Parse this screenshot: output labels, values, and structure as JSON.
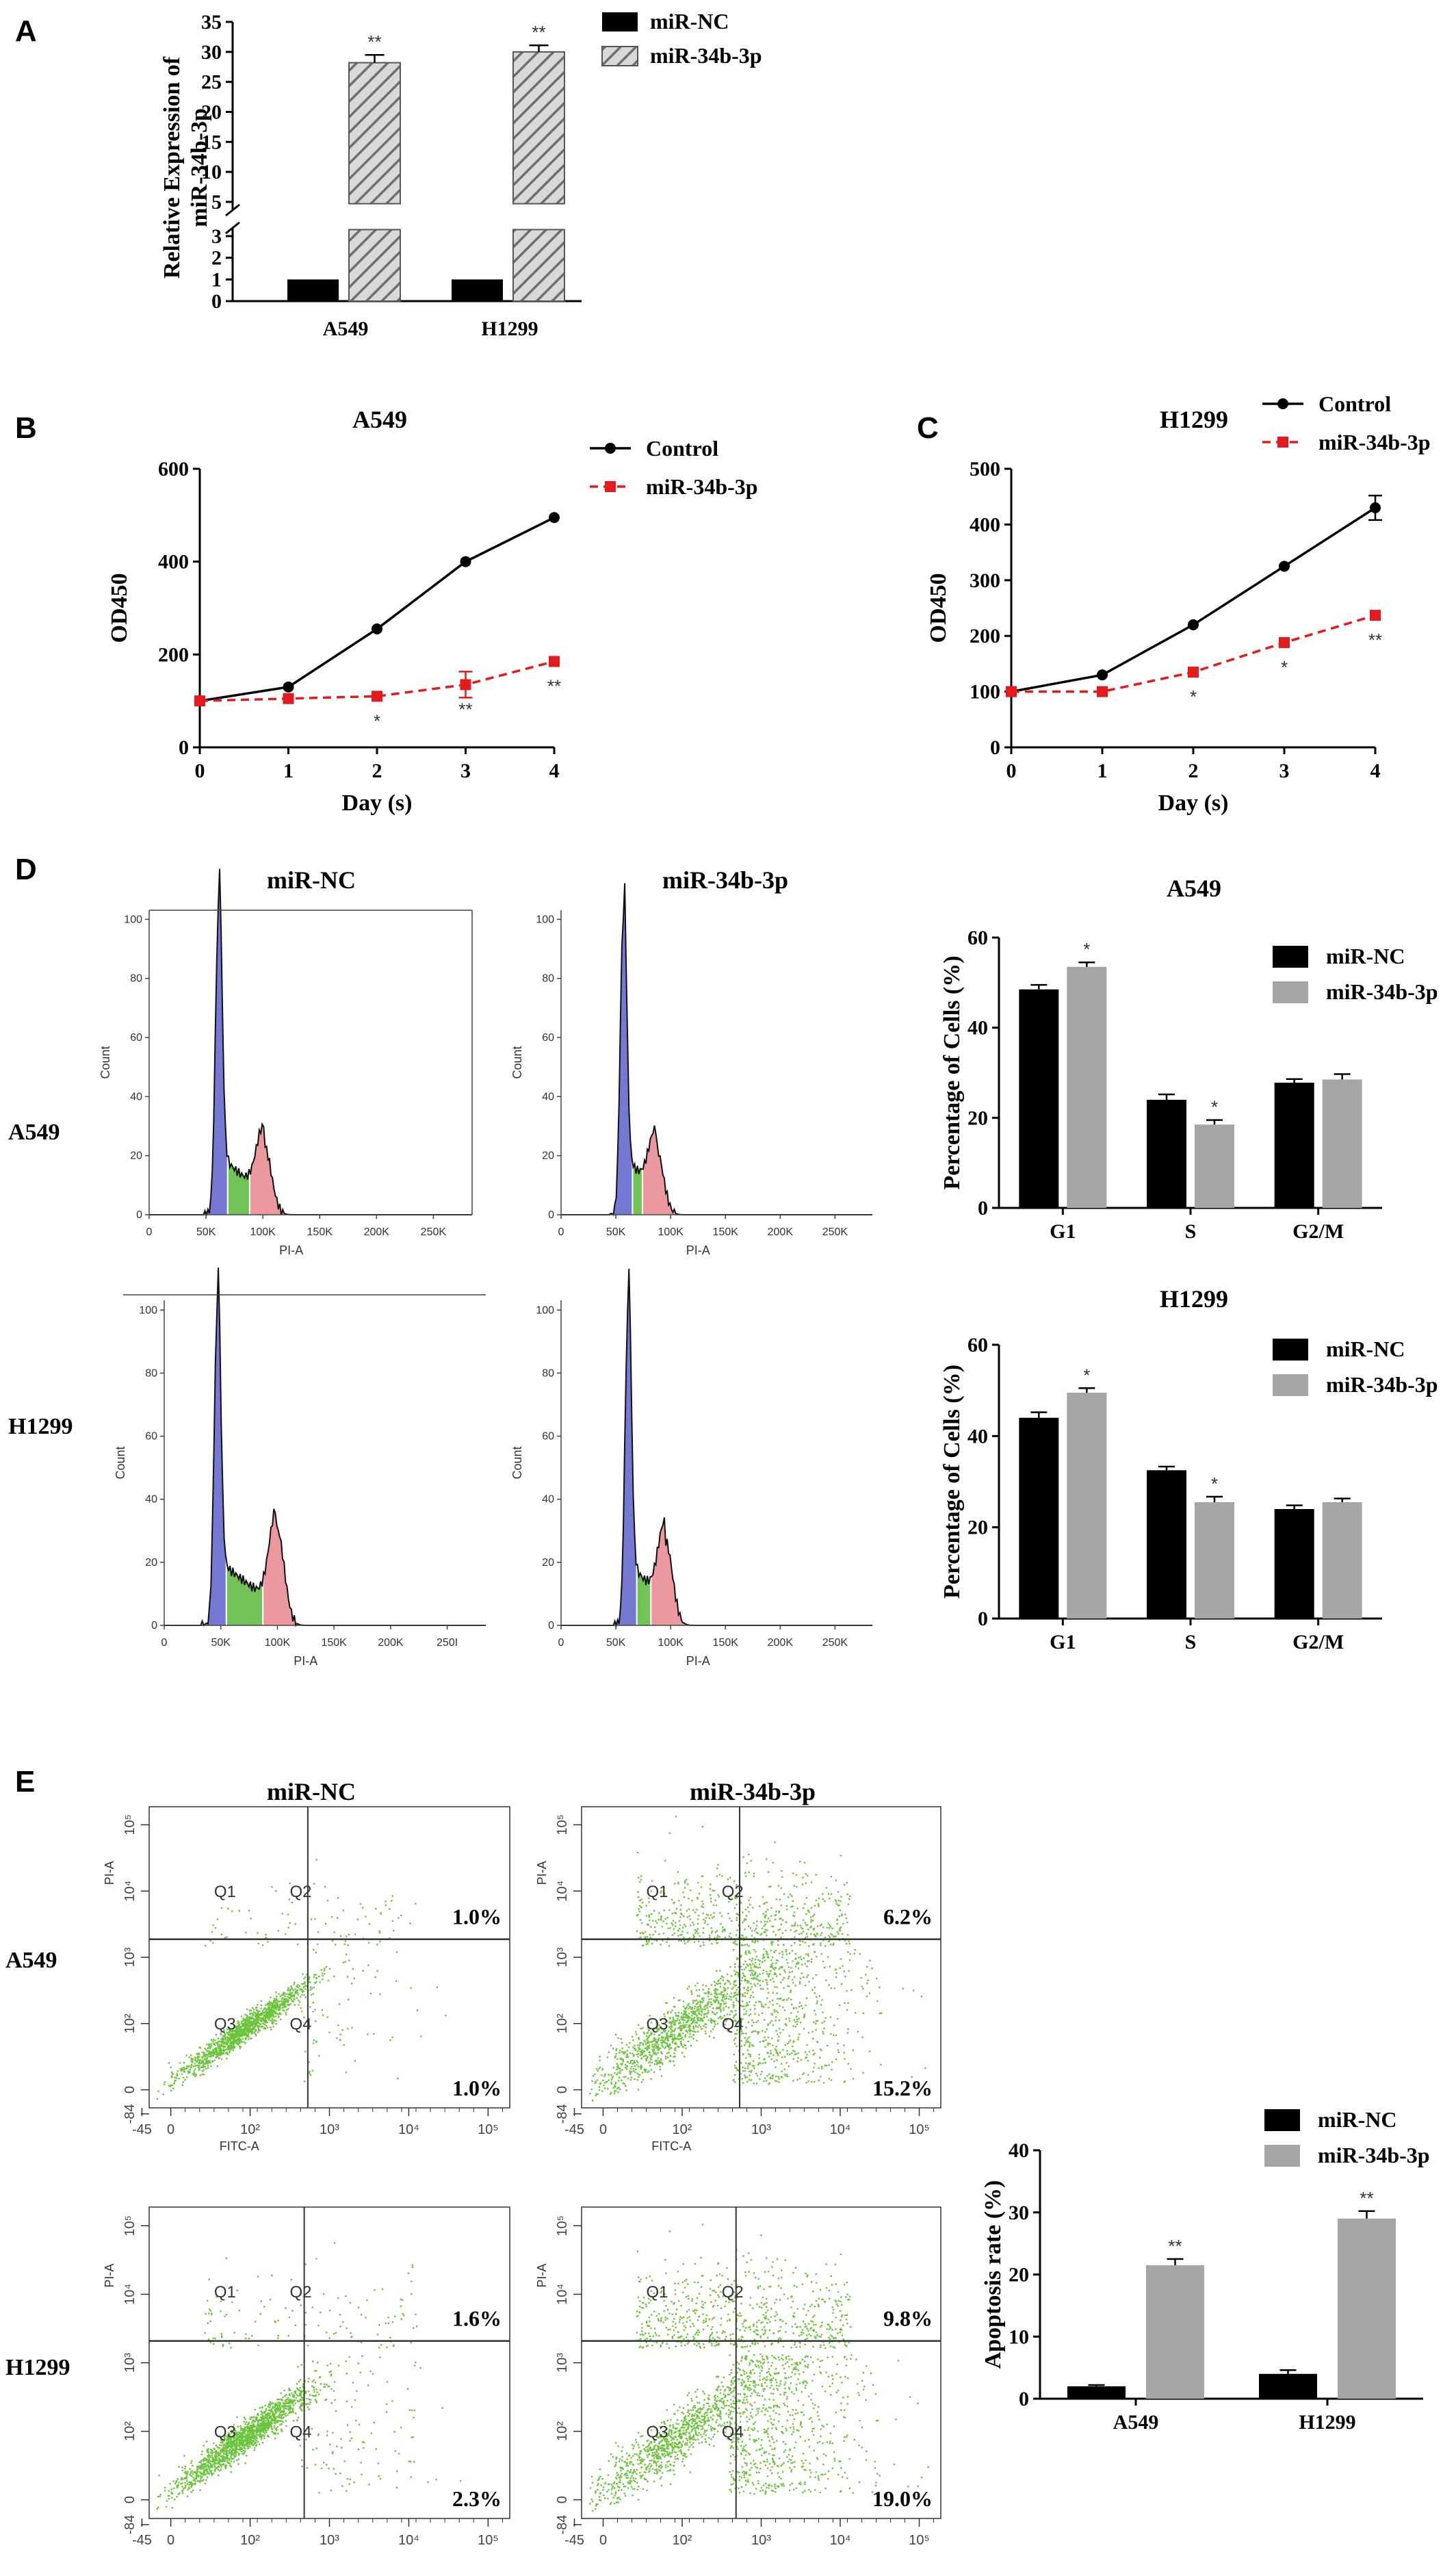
{
  "panel_labels": [
    "A",
    "B",
    "C",
    "D",
    "E"
  ],
  "colors": {
    "black": "#000000",
    "gray": "#a6a6a6",
    "red": "#e41a1c",
    "blue": "#5d62c9",
    "green": "#58b93b",
    "pink": "#e8868e",
    "dot_green": "#6cc43d"
  },
  "chart_data": [
    {
      "id": "A",
      "type": "bar",
      "title": "",
      "xlabel": "",
      "ylabel": "Relative Expression of miR-34b-3p",
      "categories": [
        "A549",
        "H1299"
      ],
      "series": [
        {
          "name": "miR-NC",
          "values": [
            1.0,
            1.0
          ],
          "errors": [
            0.05,
            0.05
          ],
          "style": "solid-black"
        },
        {
          "name": "miR-34b-3p",
          "values": [
            28.2,
            30.0
          ],
          "errors": [
            1.3,
            1.1
          ],
          "style": "hatched-gray"
        }
      ],
      "significance": [
        "**",
        "**"
      ],
      "y_axis": {
        "broken": true,
        "lower_range": [
          0,
          3
        ],
        "upper_range": [
          5,
          35
        ],
        "lower_ticks": [
          "0",
          "1",
          "2",
          "3"
        ],
        "upper_ticks": [
          "5",
          "10",
          "15",
          "20",
          "25",
          "30",
          "35"
        ]
      },
      "legend": "top-right"
    },
    {
      "id": "B",
      "type": "line",
      "title": "A549",
      "xlabel": "Day (s)",
      "ylabel": "OD450",
      "x": [
        0,
        1,
        2,
        3,
        4
      ],
      "ylim": [
        0,
        600
      ],
      "yticks": [
        "0",
        "200",
        "400",
        "600"
      ],
      "xticks": [
        "0",
        "1",
        "2",
        "3",
        "4"
      ],
      "series": [
        {
          "name": "Control",
          "values": [
            100,
            130,
            255,
            400,
            495
          ],
          "errors": [
            0,
            0,
            0,
            0,
            0
          ]
        },
        {
          "name": "miR-34b-3p",
          "values": [
            100,
            105,
            110,
            135,
            185
          ],
          "errors": [
            0,
            0,
            0,
            28,
            0
          ]
        }
      ],
      "significance": [
        "",
        "",
        "*",
        "**",
        "**"
      ],
      "legend": "top-right"
    },
    {
      "id": "C",
      "type": "line",
      "title": "H1299",
      "xlabel": "Day (s)",
      "ylabel": "OD450",
      "x": [
        0,
        1,
        2,
        3,
        4
      ],
      "ylim": [
        0,
        500
      ],
      "yticks": [
        "0",
        "100",
        "200",
        "300",
        "400",
        "500"
      ],
      "xticks": [
        "0",
        "1",
        "2",
        "3",
        "4"
      ],
      "series": [
        {
          "name": "Control",
          "values": [
            100,
            130,
            220,
            325,
            430
          ],
          "errors": [
            0,
            0,
            0,
            0,
            22
          ]
        },
        {
          "name": "miR-34b-3p",
          "values": [
            100,
            100,
            135,
            188,
            237
          ],
          "errors": [
            0,
            0,
            0,
            0,
            0
          ]
        }
      ],
      "significance": [
        "",
        "",
        "*",
        "*",
        "**"
      ],
      "legend": "top-right"
    },
    {
      "id": "D-A549",
      "type": "bar",
      "title": "A549",
      "xlabel": "",
      "ylabel": "Percentage of Cells (%)",
      "categories": [
        "G1",
        "S",
        "G2/M"
      ],
      "ylim": [
        0,
        60
      ],
      "yticks": [
        "0",
        "20",
        "40",
        "60"
      ],
      "series": [
        {
          "name": "miR-NC",
          "values": [
            48.5,
            24.0,
            27.8
          ],
          "errors": [
            1.0,
            1.2,
            0.8
          ]
        },
        {
          "name": "miR-34b-3p",
          "values": [
            53.5,
            18.5,
            28.5
          ],
          "errors": [
            1.0,
            1.0,
            1.2
          ]
        }
      ],
      "significance": [
        "*",
        "*",
        ""
      ],
      "legend": "top-right"
    },
    {
      "id": "D-H1299",
      "type": "bar",
      "title": "H1299",
      "xlabel": "",
      "ylabel": "Percentage of Cells (%)",
      "categories": [
        "G1",
        "S",
        "G2/M"
      ],
      "ylim": [
        0,
        60
      ],
      "yticks": [
        "0",
        "20",
        "40",
        "60"
      ],
      "series": [
        {
          "name": "miR-NC",
          "values": [
            44.0,
            32.5,
            24.0
          ],
          "errors": [
            1.2,
            0.8,
            0.8
          ]
        },
        {
          "name": "miR-34b-3p",
          "values": [
            49.5,
            25.5,
            25.5
          ],
          "errors": [
            1.0,
            1.2,
            0.8
          ]
        }
      ],
      "significance": [
        "*",
        "*",
        ""
      ],
      "legend": "top-right"
    },
    {
      "id": "E-bar",
      "type": "bar",
      "title": "",
      "xlabel": "",
      "ylabel": "Apoptosis rate (%)",
      "categories": [
        "A549",
        "H1299"
      ],
      "ylim": [
        0,
        40
      ],
      "yticks": [
        "0",
        "10",
        "20",
        "30",
        "40"
      ],
      "series": [
        {
          "name": "miR-NC",
          "values": [
            2.0,
            4.0
          ],
          "errors": [
            0.2,
            0.6
          ]
        },
        {
          "name": "miR-34b-3p",
          "values": [
            21.5,
            29.0
          ],
          "errors": [
            1.0,
            1.2
          ]
        }
      ],
      "significance": [
        "**",
        "**"
      ],
      "legend": "top-right"
    }
  ],
  "panel_D": {
    "col_titles": [
      "miR-NC",
      "miR-34b-3p"
    ],
    "row_labels": [
      "A549",
      "H1299"
    ],
    "y_label": "Count",
    "x_label": "PI-A",
    "y_ticks": [
      "0",
      "20",
      "40",
      "60",
      "80",
      "100"
    ],
    "x_ticks": [
      "0",
      "50K",
      "100K",
      "150K",
      "200K",
      "250K"
    ],
    "x_ticks_alt": [
      "0",
      "50K",
      "100K",
      "150K",
      "200K",
      "250I"
    ]
  },
  "panel_E": {
    "col_titles": [
      "miR-NC",
      "miR-34b-3p"
    ],
    "row_labels": [
      "A549",
      "H1299"
    ],
    "x_label": "FITC-A",
    "y_label": "PI-A",
    "quadrants": [
      "Q1",
      "Q2",
      "Q3",
      "Q4"
    ],
    "x_ticks": [
      "-45",
      "0",
      "10²",
      "10³",
      "10⁴",
      "10⁵"
    ],
    "y_ticks": [
      "-84",
      "0",
      "10²",
      "10³",
      "10⁴",
      "10⁵"
    ],
    "percentages": [
      {
        "upper": "1.0%",
        "lower": "1.0%"
      },
      {
        "upper": "6.2%",
        "lower": "15.2%"
      },
      {
        "upper": "1.6%",
        "lower": "2.3%"
      },
      {
        "upper": "9.8%",
        "lower": "19.0%"
      }
    ]
  }
}
